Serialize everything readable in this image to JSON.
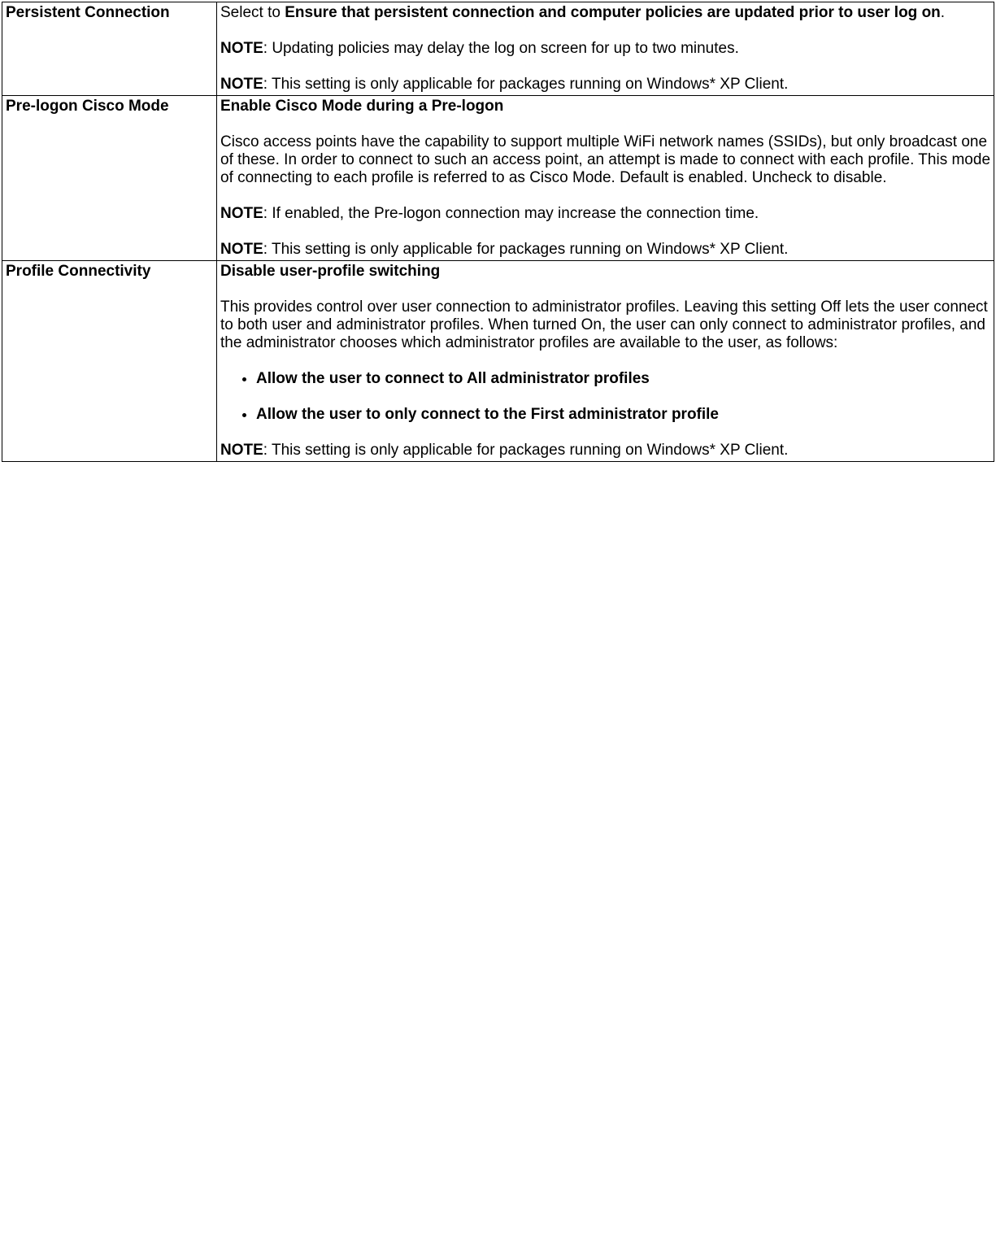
{
  "rows": [
    {
      "label": "Persistent Connection",
      "intro_prefix": "Select to ",
      "intro_bold": "Ensure that persistent connection and computer policies are updated prior to user log on",
      "intro_suffix": ".",
      "note1_label": "NOTE",
      "note1_text": ": Updating policies may delay the log on screen for up to two minutes.",
      "note2_label": "NOTE",
      "note2_text": ": This setting is only applicable for packages running on Windows* XP Client."
    },
    {
      "label": "Pre-logon Cisco Mode",
      "heading": "Enable Cisco Mode during a Pre-logon",
      "body": "Cisco access points have the capability to support multiple WiFi network names (SSIDs), but only broadcast one of these. In order to connect to such an access point, an attempt is made to connect with each profile. This mode of connecting to each profile is referred to as Cisco Mode. Default is enabled. Uncheck to disable.",
      "note1_label": "NOTE",
      "note1_text": ": If enabled, the Pre-logon connection may increase the connection time.",
      "note2_label": "NOTE",
      "note2_text": ": This setting is only applicable for packages running on Windows* XP Client."
    },
    {
      "label": "Profile Connectivity",
      "heading": "Disable user-profile switching",
      "body": "This provides control over user connection to administrator profiles. Leaving this setting Off lets the user connect to both user and administrator profiles. When turned On, the user can only connect to administrator profiles, and the administrator chooses which administrator profiles are available to the user, as follows:",
      "bullets": [
        "Allow the user to connect to All administrator profiles",
        "Allow the user to only connect to the First administrator profile"
      ],
      "note_label": "NOTE",
      "note_text": ": This setting is only applicable for packages running on Windows* XP Client."
    }
  ]
}
